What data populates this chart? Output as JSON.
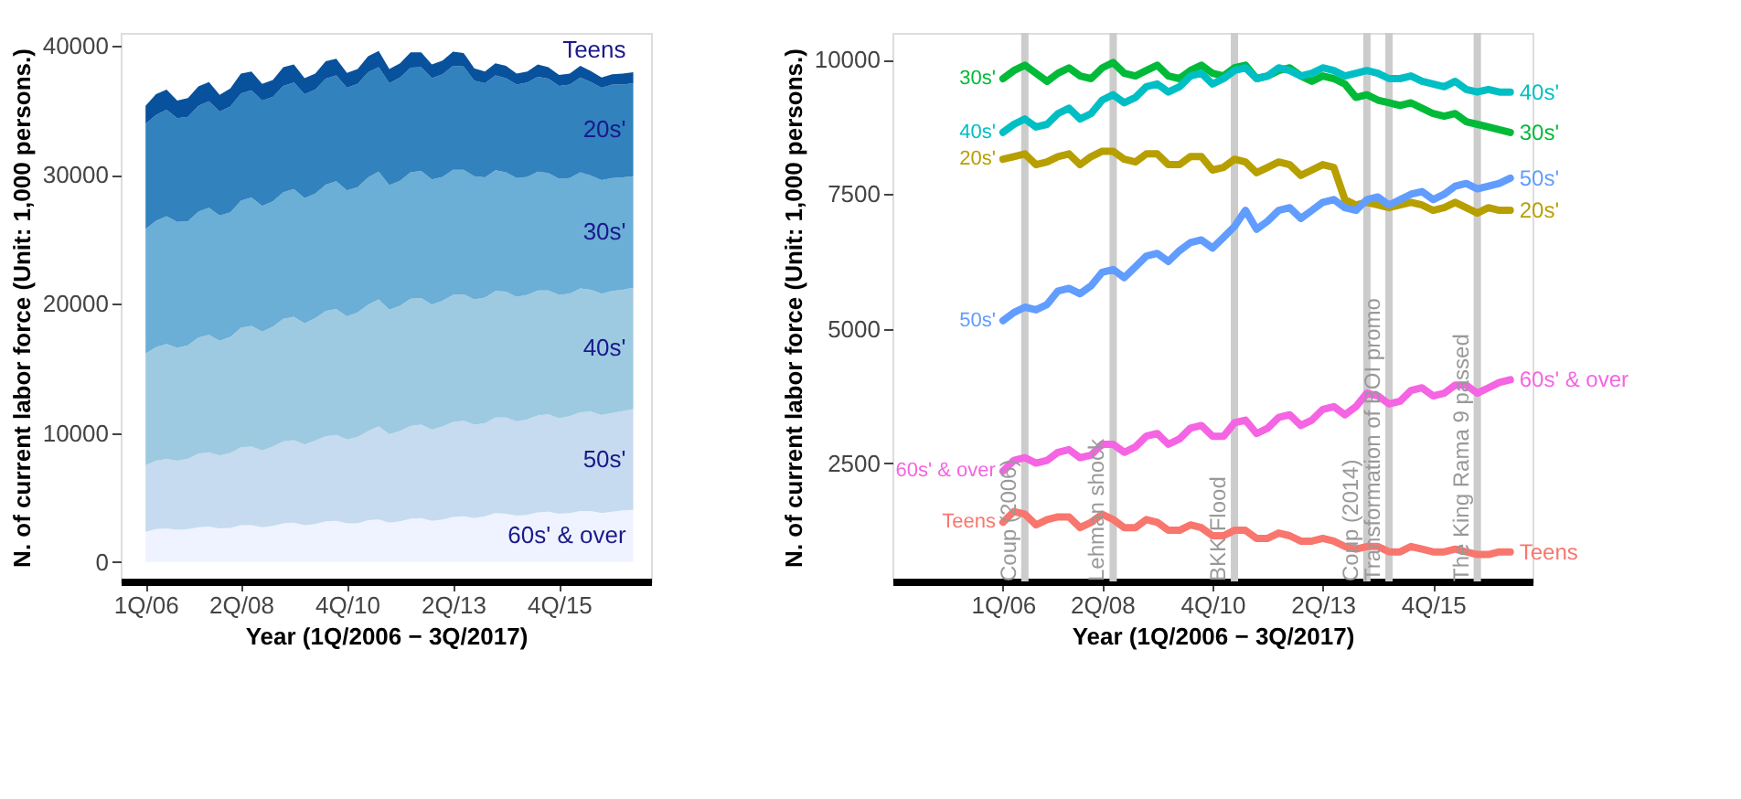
{
  "chart_data": [
    {
      "type": "area",
      "stacked": true,
      "xlabel": "Year (1Q/2006 − 3Q/2017)",
      "ylabel": "N. of current labor force (Unit: 1,000 persons.)",
      "x": [
        "2006-01",
        "2006-04",
        "2006-07",
        "2006-10",
        "2007-01",
        "2007-04",
        "2007-07",
        "2007-10",
        "2008-01",
        "2008-04",
        "2008-07",
        "2008-10",
        "2009-01",
        "2009-04",
        "2009-07",
        "2009-10",
        "2010-01",
        "2010-04",
        "2010-07",
        "2010-10",
        "2011-01",
        "2011-04",
        "2011-07",
        "2011-10",
        "2012-01",
        "2012-04",
        "2012-07",
        "2012-10",
        "2013-01",
        "2013-04",
        "2013-07",
        "2013-10",
        "2014-01",
        "2014-04",
        "2014-07",
        "2014-10",
        "2015-01",
        "2015-04",
        "2015-07",
        "2015-10",
        "2016-01",
        "2016-04",
        "2016-07",
        "2016-10",
        "2017-01",
        "2017-04",
        "2017-07"
      ],
      "xlim": [
        "2005-06",
        "2017-12"
      ],
      "xticks": [
        {
          "value": "2006-01",
          "label": "1Q/06"
        },
        {
          "value": "2008-04",
          "label": "2Q/08"
        },
        {
          "value": "2010-10",
          "label": "4Q/10"
        },
        {
          "value": "2013-04",
          "label": "2Q/13"
        },
        {
          "value": "2015-10",
          "label": "4Q/15"
        }
      ],
      "ylim": [
        -1500,
        41000
      ],
      "yticks": [
        0,
        10000,
        20000,
        30000,
        40000
      ],
      "series": [
        {
          "name": "60s' & over",
          "color": "#eff3ff",
          "values": [
            2350,
            2550,
            2600,
            2500,
            2550,
            2700,
            2750,
            2600,
            2650,
            2850,
            2850,
            2700,
            2800,
            3000,
            3050,
            2850,
            2950,
            3150,
            3200,
            3000,
            3000,
            3250,
            3300,
            3050,
            3150,
            3350,
            3400,
            3200,
            3300,
            3500,
            3550,
            3400,
            3550,
            3800,
            3750,
            3600,
            3650,
            3850,
            3900,
            3750,
            3800,
            3950,
            3950,
            3800,
            3900,
            4000,
            4050
          ]
        },
        {
          "name": "50s'",
          "color": "#c6dbef",
          "values": [
            5150,
            5300,
            5400,
            5350,
            5450,
            5700,
            5750,
            5650,
            5800,
            6050,
            6100,
            5950,
            6150,
            6350,
            6400,
            6250,
            6450,
            6600,
            6650,
            6500,
            6700,
            6900,
            7200,
            6850,
            7000,
            7200,
            7250,
            7050,
            7200,
            7350,
            7400,
            7250,
            7200,
            7400,
            7450,
            7300,
            7400,
            7500,
            7550,
            7400,
            7500,
            7650,
            7700,
            7600,
            7650,
            7700,
            7800
          ]
        },
        {
          "name": "40s'",
          "color": "#9ecae1",
          "values": [
            8650,
            8800,
            8900,
            8750,
            8800,
            9000,
            9100,
            8900,
            9000,
            9250,
            9350,
            9200,
            9300,
            9500,
            9550,
            9400,
            9500,
            9700,
            9750,
            9550,
            9650,
            9800,
            9850,
            9650,
            9700,
            9850,
            9800,
            9700,
            9750,
            9850,
            9800,
            9700,
            9750,
            9800,
            9750,
            9650,
            9650,
            9700,
            9600,
            9550,
            9500,
            9600,
            9450,
            9400,
            9450,
            9400,
            9400
          ]
        },
        {
          "name": "30s'",
          "color": "#6baed6",
          "values": [
            9650,
            9800,
            9900,
            9750,
            9600,
            9750,
            9850,
            9700,
            9650,
            9850,
            9950,
            9750,
            9700,
            9800,
            9900,
            9700,
            9650,
            9800,
            9900,
            9750,
            9700,
            9850,
            9900,
            9650,
            9700,
            9800,
            9850,
            9700,
            9600,
            9700,
            9650,
            9550,
            9300,
            9350,
            9250,
            9200,
            9150,
            9200,
            9100,
            9000,
            8950,
            9000,
            8850,
            8800,
            8750,
            8700,
            8650
          ]
        },
        {
          "name": "20s'",
          "color": "#3182bd",
          "values": [
            8150,
            8200,
            8250,
            8050,
            8100,
            8200,
            8250,
            8050,
            8200,
            8300,
            8300,
            8150,
            8100,
            8250,
            8250,
            8050,
            8050,
            8200,
            8200,
            7950,
            8000,
            8150,
            8100,
            7900,
            8000,
            8100,
            8050,
            7850,
            7950,
            8050,
            8000,
            7400,
            7300,
            7350,
            7300,
            7250,
            7300,
            7350,
            7300,
            7200,
            7250,
            7350,
            7250,
            7150,
            7250,
            7200,
            7200
          ]
        },
        {
          "name": "Teens",
          "color": "#08519c",
          "values": [
            1400,
            1600,
            1550,
            1350,
            1450,
            1500,
            1500,
            1300,
            1400,
            1550,
            1450,
            1300,
            1300,
            1450,
            1400,
            1250,
            1250,
            1350,
            1300,
            1150,
            1150,
            1250,
            1250,
            1100,
            1100,
            1200,
            1150,
            1050,
            1050,
            1100,
            1050,
            950,
            900,
            950,
            950,
            850,
            850,
            950,
            900,
            850,
            850,
            900,
            850,
            800,
            800,
            850,
            850
          ]
        }
      ]
    },
    {
      "type": "line",
      "xlabel": "Year (1Q/2006 − 3Q/2017)",
      "ylabel": "N. of current labor force (Unit: 1,000 persons.)",
      "x": [
        "2006-01",
        "2006-04",
        "2006-07",
        "2006-10",
        "2007-01",
        "2007-04",
        "2007-07",
        "2007-10",
        "2008-01",
        "2008-04",
        "2008-07",
        "2008-10",
        "2009-01",
        "2009-04",
        "2009-07",
        "2009-10",
        "2010-01",
        "2010-04",
        "2010-07",
        "2010-10",
        "2011-01",
        "2011-04",
        "2011-07",
        "2011-10",
        "2012-01",
        "2012-04",
        "2012-07",
        "2012-10",
        "2013-01",
        "2013-04",
        "2013-07",
        "2013-10",
        "2014-01",
        "2014-04",
        "2014-07",
        "2014-10",
        "2015-01",
        "2015-04",
        "2015-07",
        "2015-10",
        "2016-01",
        "2016-04",
        "2016-07",
        "2016-10",
        "2017-01",
        "2017-04",
        "2017-07"
      ],
      "xlim": [
        "2003-07",
        "2018-01"
      ],
      "xticks": [
        {
          "value": "2006-01",
          "label": "1Q/06"
        },
        {
          "value": "2008-04",
          "label": "2Q/08"
        },
        {
          "value": "2010-10",
          "label": "4Q/10"
        },
        {
          "value": "2013-04",
          "label": "2Q/13"
        },
        {
          "value": "2015-10",
          "label": "4Q/15"
        }
      ],
      "ylim": [
        300,
        10500
      ],
      "yticks": [
        2500,
        5000,
        7500,
        10000
      ],
      "ref_lines": [
        {
          "axis": "x",
          "value": "2006-07",
          "label": "Coup (2006)",
          "color": "#cccccc"
        },
        {
          "axis": "x",
          "value": "2008-07",
          "label": "Lehman shock",
          "color": "#cccccc"
        },
        {
          "axis": "x",
          "value": "2011-04",
          "label": "BKK Flood",
          "color": "#cccccc"
        },
        {
          "axis": "x",
          "value": "2014-04",
          "label": "Coup (2014)",
          "color": "#cccccc"
        },
        {
          "axis": "x",
          "value": "2014-10",
          "label": "Transformation of BOI promo",
          "color": "#cccccc"
        },
        {
          "axis": "x",
          "value": "2016-10",
          "label": "The King Rama 9 passed",
          "color": "#cccccc"
        }
      ],
      "series": [
        {
          "name": "30s'",
          "color": "#00ba38",
          "values": [
            9650,
            9800,
            9900,
            9750,
            9600,
            9750,
            9850,
            9700,
            9650,
            9850,
            9950,
            9750,
            9700,
            9800,
            9900,
            9700,
            9650,
            9800,
            9900,
            9750,
            9700,
            9850,
            9900,
            9650,
            9700,
            9800,
            9850,
            9700,
            9600,
            9700,
            9650,
            9550,
            9300,
            9350,
            9250,
            9200,
            9150,
            9200,
            9100,
            9000,
            8950,
            9000,
            8850,
            8800,
            8750,
            8700,
            8650
          ]
        },
        {
          "name": "40s'",
          "color": "#00bfc4",
          "values": [
            8650,
            8800,
            8900,
            8750,
            8800,
            9000,
            9100,
            8900,
            9000,
            9250,
            9350,
            9200,
            9300,
            9500,
            9550,
            9400,
            9500,
            9700,
            9750,
            9550,
            9650,
            9800,
            9850,
            9650,
            9700,
            9850,
            9800,
            9700,
            9750,
            9850,
            9800,
            9700,
            9750,
            9800,
            9750,
            9650,
            9650,
            9700,
            9600,
            9550,
            9500,
            9600,
            9450,
            9400,
            9450,
            9400,
            9400
          ]
        },
        {
          "name": "20s'",
          "color": "#b79f00",
          "values": [
            8150,
            8200,
            8250,
            8050,
            8100,
            8200,
            8250,
            8050,
            8200,
            8300,
            8300,
            8150,
            8100,
            8250,
            8250,
            8050,
            8050,
            8200,
            8200,
            7950,
            8000,
            8150,
            8100,
            7900,
            8000,
            8100,
            8050,
            7850,
            7950,
            8050,
            8000,
            7400,
            7300,
            7350,
            7300,
            7250,
            7300,
            7350,
            7300,
            7200,
            7250,
            7350,
            7250,
            7150,
            7250,
            7200,
            7200
          ]
        },
        {
          "name": "50s'",
          "color": "#619cff",
          "values": [
            5150,
            5300,
            5400,
            5350,
            5450,
            5700,
            5750,
            5650,
            5800,
            6050,
            6100,
            5950,
            6150,
            6350,
            6400,
            6250,
            6450,
            6600,
            6650,
            6500,
            6700,
            6900,
            7200,
            6850,
            7000,
            7200,
            7250,
            7050,
            7200,
            7350,
            7400,
            7250,
            7200,
            7400,
            7450,
            7300,
            7400,
            7500,
            7550,
            7400,
            7500,
            7650,
            7700,
            7600,
            7650,
            7700,
            7800
          ]
        },
        {
          "name": "60s' & over",
          "color": "#f564e3",
          "values": [
            2350,
            2550,
            2600,
            2500,
            2550,
            2700,
            2750,
            2600,
            2650,
            2850,
            2850,
            2700,
            2800,
            3000,
            3050,
            2850,
            2950,
            3150,
            3200,
            3000,
            3000,
            3250,
            3300,
            3050,
            3150,
            3350,
            3400,
            3200,
            3300,
            3500,
            3550,
            3400,
            3550,
            3800,
            3750,
            3600,
            3650,
            3850,
            3900,
            3750,
            3800,
            3950,
            3950,
            3800,
            3900,
            4000,
            4050
          ]
        },
        {
          "name": "Teens",
          "color": "#f8766d",
          "values": [
            1400,
            1600,
            1550,
            1350,
            1450,
            1500,
            1500,
            1300,
            1400,
            1550,
            1450,
            1300,
            1300,
            1450,
            1400,
            1250,
            1250,
            1350,
            1300,
            1150,
            1150,
            1250,
            1250,
            1100,
            1100,
            1200,
            1150,
            1050,
            1050,
            1100,
            1050,
            950,
            900,
            950,
            950,
            850,
            850,
            950,
            900,
            850,
            850,
            900,
            850,
            800,
            800,
            850,
            850
          ]
        }
      ]
    }
  ]
}
